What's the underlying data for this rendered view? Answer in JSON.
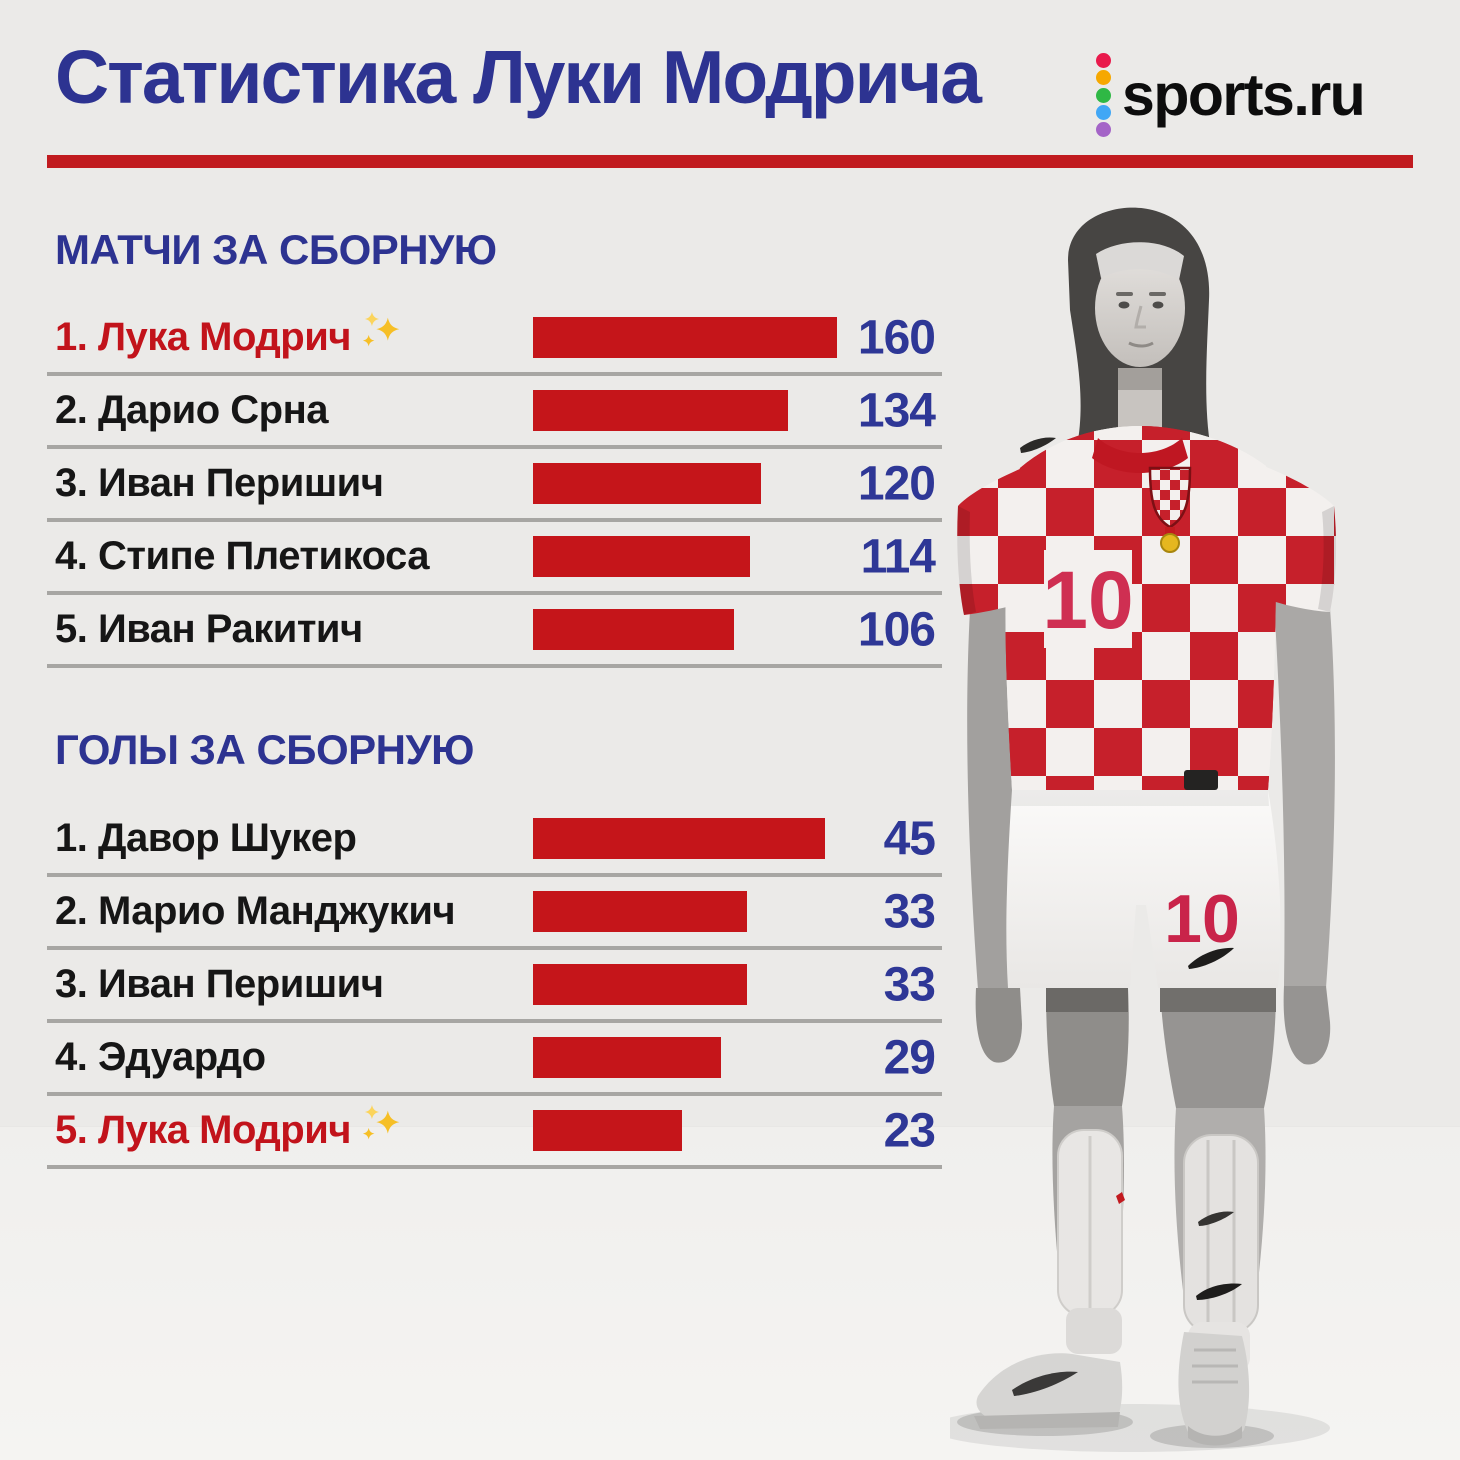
{
  "header": {
    "title": "Статистика Луки Модрича",
    "logo_text": "sports.ru",
    "logo_dot_colors": [
      "#e91a4c",
      "#f6a800",
      "#2fb845",
      "#41a7f5",
      "#a464c7"
    ]
  },
  "sparkle": "✨",
  "chart_data": [
    {
      "type": "bar",
      "title": "МАТЧИ ЗА СБОРНУЮ",
      "orientation": "horizontal",
      "categories": [
        "1. Лука Модрич",
        "2. Дарио Срна",
        "3. Иван Перишич",
        "4. Стипе Плетикоса",
        "5. Иван Ракитич"
      ],
      "values": [
        160,
        134,
        120,
        114,
        106
      ],
      "highlight_index": 0,
      "highlight_note": "Лука Модрич отмечен красным цветом и эмодзи ✨",
      "xlim": [
        0,
        160
      ],
      "bar_color": "#c5151a",
      "value_color": "#2e3796",
      "grid": false,
      "legend": "none"
    },
    {
      "type": "bar",
      "title": "ГОЛЫ ЗА СБОРНУЮ",
      "orientation": "horizontal",
      "categories": [
        "1. Давор Шукер",
        "2. Марио Манджукич",
        "3. Иван Перишич",
        "4. Эдуардо",
        "5. Лука Модрич"
      ],
      "values": [
        45,
        33,
        33,
        29,
        23
      ],
      "highlight_index": 4,
      "highlight_note": "Лука Модрич отмечен красным цветом и эмодзи ✨",
      "xlim": [
        0,
        45
      ],
      "bar_color": "#c5151a",
      "value_color": "#2e3796",
      "grid": false,
      "legend": "none"
    }
  ],
  "player": {
    "jersey_number": "10",
    "shorts_number": "10"
  },
  "colors": {
    "background": "#ebeae8",
    "title_blue": "#2d3391",
    "bar_red": "#c5151a",
    "rule_red": "#c11b1f",
    "divider_gray": "#a7a6a3",
    "highlight_red": "#c2131b"
  }
}
